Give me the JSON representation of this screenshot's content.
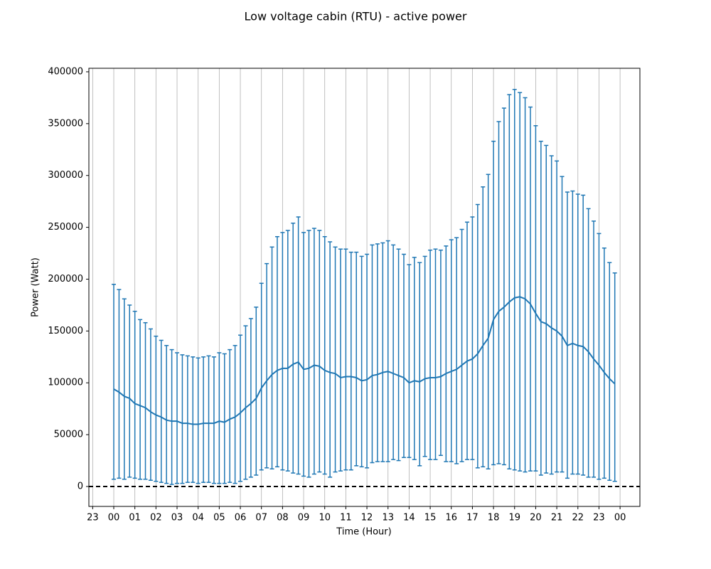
{
  "chart_data": {
    "type": "errorbar",
    "title": "Low voltage cabin (RTU) - active power",
    "x_label": "Time (Hour)",
    "y_label": "Power (Watt)",
    "x": [
      0,
      0.25,
      0.5,
      0.75,
      1,
      1.25,
      1.5,
      1.75,
      2,
      2.25,
      2.5,
      2.75,
      3,
      3.25,
      3.5,
      3.75,
      4,
      4.25,
      4.5,
      4.75,
      5,
      5.25,
      5.5,
      5.75,
      6,
      6.25,
      6.5,
      6.75,
      7,
      7.25,
      7.5,
      7.75,
      8,
      8.25,
      8.5,
      8.75,
      9,
      9.25,
      9.5,
      9.75,
      10,
      10.25,
      10.5,
      10.75,
      11,
      11.25,
      11.5,
      11.75,
      12,
      12.25,
      12.5,
      12.75,
      13,
      13.25,
      13.5,
      13.75,
      14,
      14.25,
      14.5,
      14.75,
      15,
      15.25,
      15.5,
      15.75,
      16,
      16.25,
      16.5,
      16.75,
      17,
      17.25,
      17.5,
      17.75,
      18,
      18.25,
      18.5,
      18.75,
      19,
      19.25,
      19.5,
      19.75,
      20,
      20.25,
      20.5,
      20.75,
      21,
      21.25,
      21.5,
      21.75,
      22,
      22.25,
      22.5,
      22.75,
      23,
      23.25,
      23.5,
      23.75
    ],
    "series": [
      {
        "color": "#1f77b4",
        "values": [
          94000,
          91000,
          87000,
          85000,
          80000,
          78000,
          76000,
          72000,
          69000,
          67000,
          64000,
          63000,
          63000,
          61000,
          61000,
          60000,
          60000,
          61000,
          61000,
          61000,
          63000,
          62000,
          65000,
          67000,
          71000,
          76000,
          80000,
          85000,
          95000,
          102000,
          108000,
          112000,
          114000,
          114000,
          118000,
          120000,
          113000,
          114000,
          117000,
          116000,
          112000,
          110000,
          109000,
          105000,
          106000,
          106000,
          105000,
          102000,
          103000,
          107000,
          108000,
          110000,
          111000,
          109000,
          107000,
          105000,
          100000,
          102000,
          101000,
          104000,
          105000,
          105000,
          106000,
          109000,
          111000,
          113000,
          117000,
          121000,
          123000,
          128000,
          136000,
          143000,
          161000,
          169000,
          173000,
          178000,
          182000,
          183000,
          181000,
          176000,
          167000,
          159000,
          157000,
          153000,
          150000,
          145000,
          136000,
          138000,
          136000,
          135000,
          130000,
          123000,
          117000,
          110000,
          104000,
          99000
        ],
        "low": [
          7000,
          8000,
          7000,
          9000,
          8000,
          7000,
          7000,
          6000,
          5000,
          4000,
          3000,
          2000,
          3000,
          3000,
          4000,
          4000,
          3000,
          4000,
          4000,
          3000,
          3000,
          3000,
          4000,
          3000,
          5000,
          7000,
          9000,
          11000,
          16000,
          18000,
          17000,
          19000,
          16000,
          15000,
          13000,
          12000,
          10000,
          9000,
          12000,
          14000,
          12000,
          9000,
          14000,
          15000,
          16000,
          16000,
          20000,
          19000,
          18000,
          23000,
          24000,
          24000,
          24000,
          26000,
          25000,
          28000,
          28000,
          26000,
          20000,
          29000,
          26000,
          26000,
          30000,
          24000,
          24000,
          22000,
          24000,
          26000,
          26000,
          18000,
          19000,
          17000,
          21000,
          22000,
          21000,
          17000,
          16000,
          15000,
          14000,
          15000,
          15000,
          11000,
          13000,
          12000,
          14000,
          14000,
          8000,
          12000,
          12000,
          11000,
          9000,
          9000,
          7000,
          8000,
          6000,
          5000
        ],
        "high": [
          195000,
          190000,
          181000,
          175000,
          169000,
          161000,
          158000,
          152000,
          145000,
          141000,
          136000,
          132000,
          129000,
          127000,
          126000,
          125000,
          124000,
          125000,
          126000,
          125000,
          129000,
          128000,
          132000,
          136000,
          146000,
          155000,
          162000,
          173000,
          196000,
          215000,
          231000,
          241000,
          245000,
          247000,
          254000,
          260000,
          245000,
          247000,
          249000,
          247000,
          241000,
          236000,
          231000,
          229000,
          229000,
          226000,
          226000,
          222000,
          224000,
          233000,
          234000,
          235000,
          237000,
          233000,
          229000,
          224000,
          214000,
          221000,
          216000,
          222000,
          228000,
          229000,
          228000,
          232000,
          238000,
          240000,
          248000,
          255000,
          260000,
          272000,
          289000,
          301000,
          333000,
          352000,
          365000,
          378000,
          383000,
          380000,
          375000,
          366000,
          348000,
          333000,
          329000,
          319000,
          314000,
          299000,
          284000,
          285000,
          282000,
          281000,
          268000,
          256000,
          244000,
          230000,
          216000,
          206000
        ]
      }
    ],
    "hline": 0,
    "xlim": [
      -1.18,
      24.94
    ],
    "ylim": [
      -19200,
      403400
    ],
    "xticks": [
      {
        "value": -1,
        "label": "23"
      },
      {
        "value": 0,
        "label": "00"
      },
      {
        "value": 1,
        "label": "01"
      },
      {
        "value": 2,
        "label": "02"
      },
      {
        "value": 3,
        "label": "03"
      },
      {
        "value": 4,
        "label": "04"
      },
      {
        "value": 5,
        "label": "05"
      },
      {
        "value": 6,
        "label": "06"
      },
      {
        "value": 7,
        "label": "07"
      },
      {
        "value": 8,
        "label": "08"
      },
      {
        "value": 9,
        "label": "09"
      },
      {
        "value": 10,
        "label": "10"
      },
      {
        "value": 11,
        "label": "11"
      },
      {
        "value": 12,
        "label": "12"
      },
      {
        "value": 13,
        "label": "13"
      },
      {
        "value": 14,
        "label": "14"
      },
      {
        "value": 15,
        "label": "15"
      },
      {
        "value": 16,
        "label": "16"
      },
      {
        "value": 17,
        "label": "17"
      },
      {
        "value": 18,
        "label": "18"
      },
      {
        "value": 19,
        "label": "19"
      },
      {
        "value": 20,
        "label": "20"
      },
      {
        "value": 21,
        "label": "21"
      },
      {
        "value": 22,
        "label": "22"
      },
      {
        "value": 23,
        "label": "23"
      },
      {
        "value": 24,
        "label": "00"
      }
    ],
    "yticks": [
      0,
      50000,
      100000,
      150000,
      200000,
      250000,
      300000,
      350000,
      400000
    ],
    "grid_x": true
  }
}
